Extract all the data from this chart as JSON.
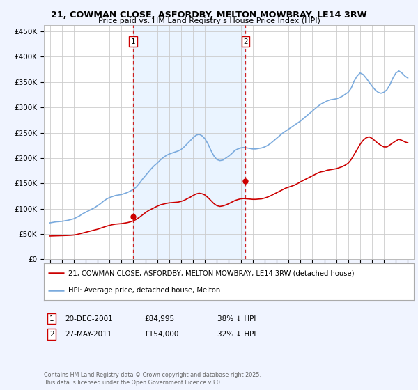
{
  "title_line1": "21, COWMAN CLOSE, ASFORDBY, MELTON MOWBRAY, LE14 3RW",
  "title_line2": "Price paid vs. HM Land Registry's House Price Index (HPI)",
  "ylabel_ticks": [
    "£0",
    "£50K",
    "£100K",
    "£150K",
    "£200K",
    "£250K",
    "£300K",
    "£350K",
    "£400K",
    "£450K"
  ],
  "ytick_values": [
    0,
    50000,
    100000,
    150000,
    200000,
    250000,
    300000,
    350000,
    400000,
    450000
  ],
  "ylim": [
    0,
    462000
  ],
  "xlim_start": 1994.5,
  "xlim_end": 2025.5,
  "xticks": [
    1995,
    1996,
    1997,
    1998,
    1999,
    2000,
    2001,
    2002,
    2003,
    2004,
    2005,
    2006,
    2007,
    2008,
    2009,
    2010,
    2011,
    2012,
    2013,
    2014,
    2015,
    2016,
    2017,
    2018,
    2019,
    2020,
    2021,
    2022,
    2023,
    2024,
    2025
  ],
  "red_line_color": "#cc0000",
  "blue_line_color": "#7aaadd",
  "vline_color": "#cc0000",
  "background_color": "#f0f4ff",
  "plot_bg_color": "#ffffff",
  "shade_color": "#ddeeff",
  "grid_color": "#cccccc",
  "legend_label_red": "21, COWMAN CLOSE, ASFORDBY, MELTON MOWBRAY, LE14 3RW (detached house)",
  "legend_label_blue": "HPI: Average price, detached house, Melton",
  "marker1_x": 2001.97,
  "marker1_y": 84995,
  "marker1_label": "1",
  "marker1_date": "20-DEC-2001",
  "marker1_price": "£84,995",
  "marker1_hpi": "38% ↓ HPI",
  "marker2_x": 2011.4,
  "marker2_y": 154000,
  "marker2_label": "2",
  "marker2_date": "27-MAY-2011",
  "marker2_price": "£154,000",
  "marker2_hpi": "32% ↓ HPI",
  "footnote": "Contains HM Land Registry data © Crown copyright and database right 2025.\nThis data is licensed under the Open Government Licence v3.0.",
  "hpi_blue_data_x": [
    1995.0,
    1995.25,
    1995.5,
    1995.75,
    1996.0,
    1996.25,
    1996.5,
    1996.75,
    1997.0,
    1997.25,
    1997.5,
    1997.75,
    1998.0,
    1998.25,
    1998.5,
    1998.75,
    1999.0,
    1999.25,
    1999.5,
    1999.75,
    2000.0,
    2000.25,
    2000.5,
    2000.75,
    2001.0,
    2001.25,
    2001.5,
    2001.75,
    2002.0,
    2002.25,
    2002.5,
    2002.75,
    2003.0,
    2003.25,
    2003.5,
    2003.75,
    2004.0,
    2004.25,
    2004.5,
    2004.75,
    2005.0,
    2005.25,
    2005.5,
    2005.75,
    2006.0,
    2006.25,
    2006.5,
    2006.75,
    2007.0,
    2007.25,
    2007.5,
    2007.75,
    2008.0,
    2008.25,
    2008.5,
    2008.75,
    2009.0,
    2009.25,
    2009.5,
    2009.75,
    2010.0,
    2010.25,
    2010.5,
    2010.75,
    2011.0,
    2011.25,
    2011.5,
    2011.75,
    2012.0,
    2012.25,
    2012.5,
    2012.75,
    2013.0,
    2013.25,
    2013.5,
    2013.75,
    2014.0,
    2014.25,
    2014.5,
    2014.75,
    2015.0,
    2015.25,
    2015.5,
    2015.75,
    2016.0,
    2016.25,
    2016.5,
    2016.75,
    2017.0,
    2017.25,
    2017.5,
    2017.75,
    2018.0,
    2018.25,
    2018.5,
    2018.75,
    2019.0,
    2019.25,
    2019.5,
    2019.75,
    2020.0,
    2020.25,
    2020.5,
    2020.75,
    2021.0,
    2021.25,
    2021.5,
    2021.75,
    2022.0,
    2022.25,
    2022.5,
    2022.75,
    2023.0,
    2023.25,
    2023.5,
    2023.75,
    2024.0,
    2024.25,
    2024.5,
    2024.75,
    2025.0
  ],
  "hpi_blue_data_y": [
    72000,
    73000,
    74000,
    74500,
    75000,
    76000,
    77000,
    78500,
    80000,
    83000,
    86000,
    90000,
    93000,
    96000,
    99000,
    102000,
    106000,
    110000,
    115000,
    119000,
    122000,
    124000,
    126000,
    127000,
    128000,
    130000,
    132000,
    135000,
    138000,
    143000,
    150000,
    158000,
    165000,
    172000,
    179000,
    185000,
    190000,
    196000,
    201000,
    205000,
    208000,
    210000,
    212000,
    214000,
    217000,
    222000,
    228000,
    234000,
    240000,
    245000,
    247000,
    244000,
    238000,
    228000,
    215000,
    204000,
    197000,
    195000,
    196000,
    200000,
    204000,
    209000,
    215000,
    218000,
    220000,
    221000,
    220000,
    219000,
    218000,
    218000,
    219000,
    220000,
    222000,
    225000,
    229000,
    234000,
    239000,
    244000,
    249000,
    253000,
    257000,
    261000,
    265000,
    269000,
    273000,
    278000,
    283000,
    288000,
    293000,
    298000,
    303000,
    307000,
    310000,
    313000,
    315000,
    316000,
    317000,
    319000,
    322000,
    326000,
    330000,
    338000,
    352000,
    362000,
    368000,
    365000,
    358000,
    350000,
    342000,
    335000,
    330000,
    328000,
    330000,
    335000,
    345000,
    358000,
    368000,
    372000,
    368000,
    362000,
    358000
  ],
  "red_sold_data_x": [
    1995.0,
    1995.25,
    1995.5,
    1995.75,
    1996.0,
    1996.25,
    1996.5,
    1996.75,
    1997.0,
    1997.25,
    1997.5,
    1997.75,
    1998.0,
    1998.25,
    1998.5,
    1998.75,
    1999.0,
    1999.25,
    1999.5,
    1999.75,
    2000.0,
    2000.25,
    2000.5,
    2000.75,
    2001.0,
    2001.25,
    2001.5,
    2001.75,
    2002.0,
    2002.25,
    2002.5,
    2002.75,
    2003.0,
    2003.25,
    2003.5,
    2003.75,
    2004.0,
    2004.25,
    2004.5,
    2004.75,
    2005.0,
    2005.25,
    2005.5,
    2005.75,
    2006.0,
    2006.25,
    2006.5,
    2006.75,
    2007.0,
    2007.25,
    2007.5,
    2007.75,
    2008.0,
    2008.25,
    2008.5,
    2008.75,
    2009.0,
    2009.25,
    2009.5,
    2009.75,
    2010.0,
    2010.25,
    2010.5,
    2010.75,
    2011.0,
    2011.25,
    2011.5,
    2011.75,
    2012.0,
    2012.25,
    2012.5,
    2012.75,
    2013.0,
    2013.25,
    2013.5,
    2013.75,
    2014.0,
    2014.25,
    2014.5,
    2014.75,
    2015.0,
    2015.25,
    2015.5,
    2015.75,
    2016.0,
    2016.25,
    2016.5,
    2016.75,
    2017.0,
    2017.25,
    2017.5,
    2017.75,
    2018.0,
    2018.25,
    2018.5,
    2018.75,
    2019.0,
    2019.25,
    2019.5,
    2019.75,
    2020.0,
    2020.25,
    2020.5,
    2020.75,
    2021.0,
    2021.25,
    2021.5,
    2021.75,
    2022.0,
    2022.25,
    2022.5,
    2022.75,
    2023.0,
    2023.25,
    2023.5,
    2023.75,
    2024.0,
    2024.25,
    2024.5,
    2024.75,
    2025.0
  ],
  "red_sold_data_y": [
    46000,
    46200,
    46400,
    46600,
    46800,
    47000,
    47200,
    47500,
    48000,
    49000,
    50500,
    52000,
    53500,
    55000,
    56500,
    58000,
    59500,
    61500,
    63500,
    65500,
    67000,
    68500,
    69500,
    70000,
    70500,
    71500,
    72500,
    74000,
    76000,
    79000,
    83000,
    87500,
    92000,
    96000,
    99000,
    102000,
    105000,
    107500,
    109000,
    110500,
    111500,
    112000,
    112500,
    113000,
    114500,
    116500,
    119500,
    122500,
    126000,
    129000,
    130500,
    129500,
    127000,
    122000,
    116000,
    110000,
    106000,
    104500,
    105500,
    107500,
    110000,
    113000,
    116000,
    118000,
    119500,
    120000,
    119500,
    119000,
    118500,
    118500,
    119000,
    119500,
    121000,
    123000,
    125500,
    128500,
    131500,
    134500,
    137500,
    140500,
    142500,
    144500,
    146500,
    149500,
    153000,
    156000,
    159000,
    162000,
    165000,
    168000,
    171000,
    173000,
    174000,
    176000,
    177000,
    178000,
    179000,
    181000,
    183000,
    186000,
    190000,
    197000,
    207000,
    217000,
    227000,
    235000,
    240000,
    242000,
    239000,
    234000,
    229000,
    225000,
    222000,
    222000,
    226000,
    230000,
    234000,
    237000,
    235000,
    232000,
    230000
  ]
}
